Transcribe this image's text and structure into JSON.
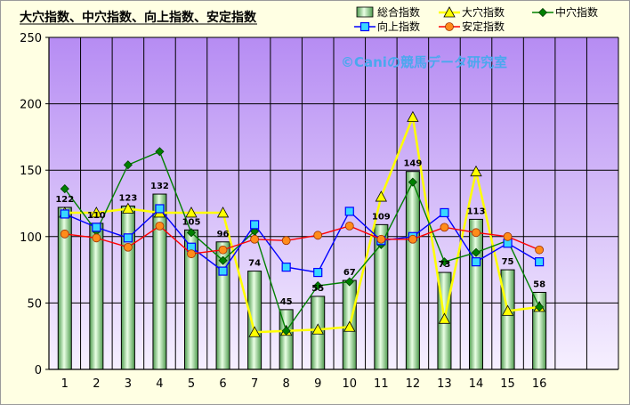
{
  "chart_data": {
    "type": "bar",
    "title": "大穴指数、中穴指数、向上指数、安定指数",
    "watermark": "©Caniの競馬データ研究室",
    "categories": [
      "1",
      "2",
      "3",
      "4",
      "5",
      "6",
      "7",
      "8",
      "9",
      "10",
      "11",
      "12",
      "13",
      "14",
      "15",
      "16"
    ],
    "ylim": [
      0,
      250
    ],
    "yticks": [
      "0",
      "50",
      "100",
      "150",
      "200",
      "250"
    ],
    "grid": true,
    "legend_position": "top-right",
    "series": [
      {
        "name": "総合指数",
        "type": "bar",
        "color": "#9fd89f",
        "values": [
          122,
          110,
          123,
          132,
          105,
          96,
          74,
          45,
          55,
          67,
          109,
          149,
          73,
          113,
          75,
          58
        ],
        "labels": [
          "122",
          "110",
          "123",
          "132",
          "105",
          "96",
          "74",
          "45",
          "55",
          "67",
          "109",
          "149",
          "73",
          "113",
          "75",
          "58"
        ]
      },
      {
        "name": "大穴指数",
        "type": "line",
        "color": "#ffff00",
        "marker": "triangle",
        "values": [
          118,
          118,
          121,
          118,
          118,
          118,
          28,
          29,
          30,
          32,
          130,
          190,
          38,
          149,
          44,
          47
        ]
      },
      {
        "name": "中穴指数",
        "type": "line",
        "color": "#008000",
        "marker": "diamond",
        "values": [
          136,
          104,
          154,
          164,
          103,
          82,
          104,
          29,
          63,
          66,
          94,
          141,
          81,
          88,
          97,
          47
        ]
      },
      {
        "name": "向上指数",
        "type": "line",
        "color": "#0000ff",
        "marker": "square",
        "values": [
          117,
          107,
          99,
          121,
          92,
          74,
          109,
          77,
          73,
          119,
          97,
          100,
          118,
          81,
          95,
          81
        ]
      },
      {
        "name": "安定指数",
        "type": "line",
        "color": "#ff0000",
        "marker": "circle",
        "values": [
          102,
          99,
          92,
          108,
          87,
          90,
          98,
          97,
          101,
          108,
          98,
          98,
          107,
          103,
          100,
          90
        ]
      }
    ]
  }
}
